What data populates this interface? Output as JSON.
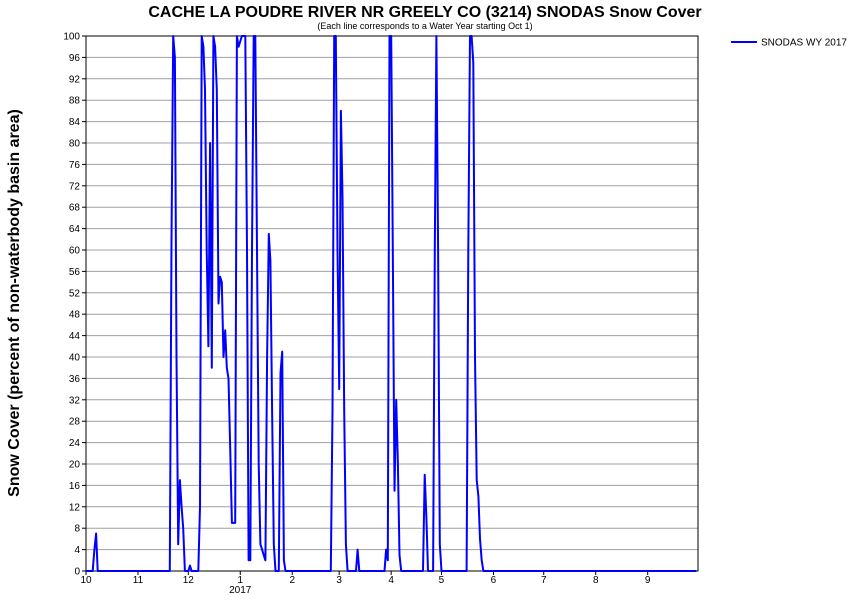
{
  "chart_data": {
    "type": "line",
    "title": "CACHE LA POUDRE RIVER NR GREELY CO (3214) SNODAS Snow Cover",
    "subtitle": "(Each line corresponds to a Water Year starting Oct 1)",
    "ylabel": "Snow Cover (percent of non-waterbody basin area)",
    "xlabel": "",
    "ylim": [
      0,
      100
    ],
    "y_ticks": [
      0,
      4,
      8,
      12,
      16,
      20,
      24,
      28,
      32,
      36,
      40,
      44,
      48,
      52,
      56,
      60,
      64,
      68,
      72,
      76,
      80,
      84,
      88,
      92,
      96,
      100
    ],
    "x_ticks": [
      {
        "label": "10",
        "date": "2016-10-01"
      },
      {
        "label": "11",
        "date": "2016-11-01"
      },
      {
        "label": "12",
        "date": "2016-12-01"
      },
      {
        "label": "1",
        "date": "2017-01-01"
      },
      {
        "label": "2",
        "date": "2017-02-01"
      },
      {
        "label": "3",
        "date": "2017-03-01"
      },
      {
        "label": "4",
        "date": "2017-04-01"
      },
      {
        "label": "5",
        "date": "2017-05-01"
      },
      {
        "label": "6",
        "date": "2017-06-01"
      },
      {
        "label": "7",
        "date": "2017-07-01"
      },
      {
        "label": "8",
        "date": "2017-08-01"
      },
      {
        "label": "9",
        "date": "2017-09-01"
      }
    ],
    "year_label": "2017",
    "x_start": "2016-10-01",
    "x_end": "2017-09-30",
    "grid": true,
    "legend_position": "top-right",
    "series": [
      {
        "name": "SNODAS WY 2017",
        "color": "#0000ff",
        "points": [
          [
            "2016-10-01",
            0
          ],
          [
            "2016-10-05",
            0
          ],
          [
            "2016-10-06",
            4
          ],
          [
            "2016-10-07",
            7
          ],
          [
            "2016-10-08",
            0
          ],
          [
            "2016-11-20",
            0
          ],
          [
            "2016-11-21",
            62
          ],
          [
            "2016-11-22",
            100
          ],
          [
            "2016-11-23",
            96
          ],
          [
            "2016-11-24",
            40
          ],
          [
            "2016-11-25",
            5
          ],
          [
            "2016-11-26",
            17
          ],
          [
            "2016-11-27",
            12
          ],
          [
            "2016-11-28",
            8
          ],
          [
            "2016-11-29",
            0
          ],
          [
            "2016-12-01",
            0
          ],
          [
            "2016-12-02",
            1
          ],
          [
            "2016-12-03",
            0
          ],
          [
            "2016-12-07",
            0
          ],
          [
            "2016-12-08",
            12
          ],
          [
            "2016-12-09",
            100
          ],
          [
            "2016-12-10",
            98
          ],
          [
            "2016-12-11",
            90
          ],
          [
            "2016-12-12",
            60
          ],
          [
            "2016-12-13",
            42
          ],
          [
            "2016-12-14",
            80
          ],
          [
            "2016-12-15",
            38
          ],
          [
            "2016-12-16",
            100
          ],
          [
            "2016-12-17",
            98
          ],
          [
            "2016-12-18",
            90
          ],
          [
            "2016-12-19",
            50
          ],
          [
            "2016-12-20",
            55
          ],
          [
            "2016-12-21",
            54
          ],
          [
            "2016-12-22",
            40
          ],
          [
            "2016-12-23",
            45
          ],
          [
            "2016-12-24",
            38
          ],
          [
            "2016-12-25",
            36
          ],
          [
            "2016-12-26",
            23
          ],
          [
            "2016-12-27",
            9
          ],
          [
            "2016-12-29",
            9
          ],
          [
            "2016-12-30",
            100
          ],
          [
            "2016-12-31",
            98
          ],
          [
            "2017-01-02",
            100
          ],
          [
            "2017-01-04",
            100
          ],
          [
            "2017-01-05",
            60
          ],
          [
            "2017-01-06",
            2
          ],
          [
            "2017-01-07",
            2
          ],
          [
            "2017-01-08",
            60
          ],
          [
            "2017-01-09",
            100
          ],
          [
            "2017-01-10",
            100
          ],
          [
            "2017-01-11",
            60
          ],
          [
            "2017-01-12",
            20
          ],
          [
            "2017-01-13",
            5
          ],
          [
            "2017-01-14",
            4
          ],
          [
            "2017-01-15",
            3
          ],
          [
            "2017-01-16",
            2
          ],
          [
            "2017-01-17",
            40
          ],
          [
            "2017-01-18",
            63
          ],
          [
            "2017-01-19",
            58
          ],
          [
            "2017-01-20",
            30
          ],
          [
            "2017-01-21",
            5
          ],
          [
            "2017-01-22",
            0
          ],
          [
            "2017-01-24",
            0
          ],
          [
            "2017-01-25",
            37
          ],
          [
            "2017-01-26",
            41
          ],
          [
            "2017-01-27",
            2
          ],
          [
            "2017-01-28",
            0
          ],
          [
            "2017-02-24",
            0
          ],
          [
            "2017-02-25",
            30
          ],
          [
            "2017-02-26",
            100
          ],
          [
            "2017-02-27",
            100
          ],
          [
            "2017-02-28",
            60
          ],
          [
            "2017-03-01",
            34
          ],
          [
            "2017-03-02",
            86
          ],
          [
            "2017-03-03",
            70
          ],
          [
            "2017-03-04",
            30
          ],
          [
            "2017-03-05",
            5
          ],
          [
            "2017-03-06",
            0
          ],
          [
            "2017-03-11",
            0
          ],
          [
            "2017-03-12",
            4
          ],
          [
            "2017-03-13",
            0
          ],
          [
            "2017-03-28",
            0
          ],
          [
            "2017-03-29",
            4
          ],
          [
            "2017-03-30",
            2
          ],
          [
            "2017-03-31",
            100
          ],
          [
            "2017-04-01",
            100
          ],
          [
            "2017-04-02",
            60
          ],
          [
            "2017-04-03",
            15
          ],
          [
            "2017-04-04",
            32
          ],
          [
            "2017-04-05",
            20
          ],
          [
            "2017-04-06",
            3
          ],
          [
            "2017-04-07",
            0
          ],
          [
            "2017-04-20",
            0
          ],
          [
            "2017-04-21",
            18
          ],
          [
            "2017-04-22",
            10
          ],
          [
            "2017-04-23",
            0
          ],
          [
            "2017-04-26",
            0
          ],
          [
            "2017-04-27",
            60
          ],
          [
            "2017-04-28",
            100
          ],
          [
            "2017-04-29",
            60
          ],
          [
            "2017-04-30",
            5
          ],
          [
            "2017-05-01",
            0
          ],
          [
            "2017-05-16",
            0
          ],
          [
            "2017-05-17",
            60
          ],
          [
            "2017-05-18",
            100
          ],
          [
            "2017-05-19",
            100
          ],
          [
            "2017-05-20",
            95
          ],
          [
            "2017-05-21",
            40
          ],
          [
            "2017-05-22",
            17
          ],
          [
            "2017-05-23",
            14
          ],
          [
            "2017-05-24",
            6
          ],
          [
            "2017-05-25",
            2
          ],
          [
            "2017-05-26",
            0
          ],
          [
            "2017-06-01",
            0
          ],
          [
            "2017-09-30",
            0
          ]
        ]
      }
    ]
  }
}
